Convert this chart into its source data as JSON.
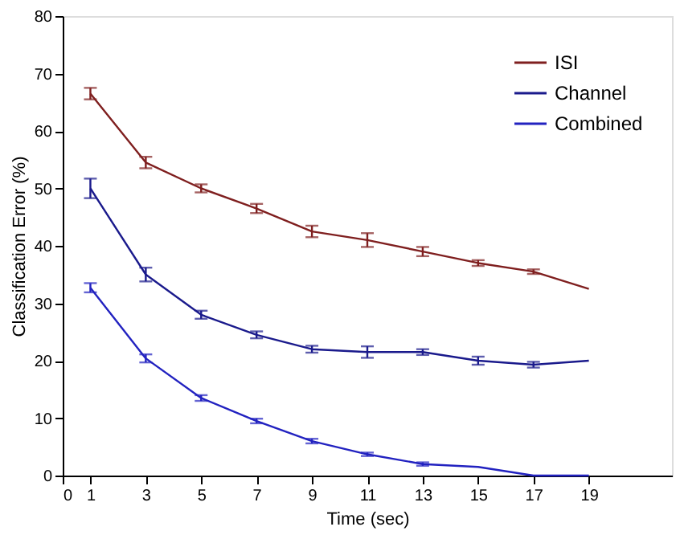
{
  "chart_data": {
    "type": "line",
    "xlabel": "Time (sec)",
    "ylabel": "Classification Error (%)",
    "x": [
      1,
      3,
      5,
      7,
      9,
      11,
      13,
      15,
      17,
      19
    ],
    "xlim": [
      0,
      22
    ],
    "xticks": [
      0,
      1,
      3,
      5,
      7,
      9,
      11,
      13,
      15,
      17,
      19
    ],
    "ylim": [
      0,
      80
    ],
    "yticks": [
      0,
      10,
      20,
      30,
      40,
      50,
      60,
      70,
      80
    ],
    "grid": false,
    "legend": "top right",
    "marker": "none",
    "line_style": "solid",
    "series": [
      {
        "name": "ISI",
        "color": "#7f1f1f",
        "values": [
          66.5,
          54.5,
          50,
          46.5,
          42.5,
          41,
          39,
          37,
          35.5,
          32.5
        ],
        "errors": [
          1,
          1,
          0.7,
          0.8,
          1,
          1.2,
          0.8,
          0.5,
          0.4,
          null
        ]
      },
      {
        "name": "Channel",
        "color": "#1a1a8c",
        "values": [
          50,
          35,
          28,
          24.5,
          22,
          21.5,
          21.5,
          20,
          19.3,
          20
        ],
        "errors": [
          1.7,
          1.2,
          0.7,
          0.6,
          0.6,
          1,
          0.5,
          0.7,
          0.5,
          null
        ]
      },
      {
        "name": "Combined",
        "color": "#2222c0",
        "values": [
          32.7,
          20.4,
          13.5,
          9.5,
          6,
          3.7,
          2,
          1.5,
          0,
          0
        ],
        "errors": [
          0.8,
          0.7,
          0.5,
          0.4,
          0.4,
          0.3,
          0.3,
          null,
          null,
          null
        ]
      }
    ]
  }
}
